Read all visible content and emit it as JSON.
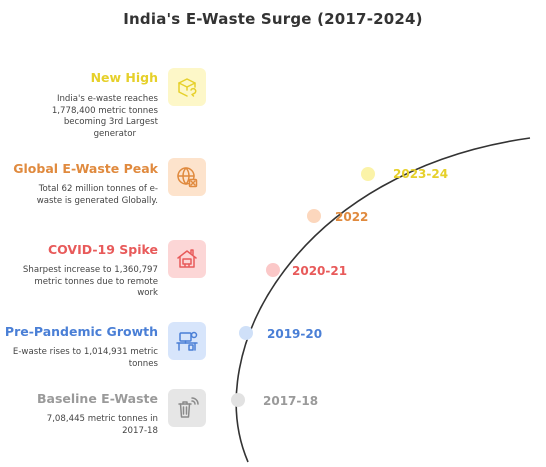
{
  "title": "India's E-Waste Surge (2017-2024)",
  "milestones": [
    {
      "year": "2023-24",
      "heading": "New High",
      "desc_lines": [
        "India's e-waste reaches",
        "1,778,400 metric tonnes",
        "becoming 3rd Largest",
        "generator"
      ],
      "icon": "recycle-box-icon",
      "color": "#e6d02a",
      "bg": "#fdf7c8",
      "dot": "#fbf3a8"
    },
    {
      "year": "2022",
      "heading": "Global E-Waste Peak",
      "desc_lines": [
        "Total 62 million tonnes of e-",
        "waste is generated Globally."
      ],
      "icon": "globe-icon",
      "color": "#e08a3e",
      "bg": "#fde3cc",
      "dot": "#fcd7bd"
    },
    {
      "year": "2020-21",
      "heading": "COVID-19 Spike",
      "desc_lines": [
        "Sharpest increase to 1,360,797",
        "metric tonnes due to remote",
        "work"
      ],
      "icon": "home-work-icon",
      "color": "#e85a5a",
      "bg": "#fcd6d6",
      "dot": "#fbc8c8"
    },
    {
      "year": "2019-20",
      "heading": "Pre-Pandemic Growth",
      "desc_lines": [
        "E-waste rises to 1,014,931 metric",
        "tonnes"
      ],
      "icon": "desk-computer-icon",
      "color": "#4a7fd6",
      "bg": "#d7e5fb",
      "dot": "#cfe0f8"
    },
    {
      "year": "2017-18",
      "heading": "Baseline E-Waste",
      "desc_lines": [
        "7,08,445 metric tonnes in",
        "2017-18"
      ],
      "icon": "trash-signal-icon",
      "color": "#9a9a9a",
      "bg": "#e6e6e6",
      "dot": "#e2e2e2"
    }
  ]
}
